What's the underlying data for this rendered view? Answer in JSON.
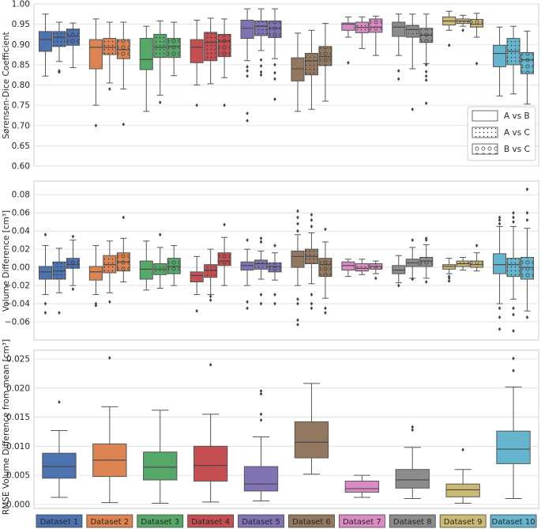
{
  "palette": [
    "#4c72b0",
    "#dd8452",
    "#55a868",
    "#c44e52",
    "#8172b3",
    "#937860",
    "#da8bc3",
    "#8c8c8c",
    "#ccb974",
    "#64b5cd"
  ],
  "chart_data": [
    {
      "type": "boxplot",
      "id": "dice",
      "ylabel": "Sørensen-Dice Coefficient",
      "ylim": [
        0.6,
        1.0
      ],
      "yticks": [
        "0.60",
        "0.65",
        "0.70",
        "0.75",
        "0.80",
        "0.85",
        "0.90",
        "0.95",
        "1.00"
      ],
      "legend": {
        "position": "right",
        "entries": [
          {
            "label": "A vs B",
            "hatch": "none"
          },
          {
            "label": "A vs C",
            "hatch": "dots"
          },
          {
            "label": "B vs C",
            "hatch": "circles"
          }
        ]
      },
      "series": [
        "A vs B",
        "A vs C",
        "B vs C"
      ],
      "categories": [
        "Dataset 1",
        "Dataset 2",
        "Dataset 3",
        "Dataset 4",
        "Dataset 5",
        "Dataset 6",
        "Dataset 7",
        "Dataset 8",
        "Dataset 9",
        "Dataset 10"
      ],
      "boxes": [
        [
          [
            0.822,
            0.883,
            0.912,
            0.932,
            0.975,
            []
          ],
          [
            0.858,
            0.895,
            0.918,
            0.932,
            0.955,
            [
              0.832,
              0.835
            ]
          ],
          [
            0.843,
            0.898,
            0.92,
            0.938,
            0.953,
            []
          ]
        ],
        [
          [
            0.75,
            0.84,
            0.893,
            0.912,
            0.963,
            [
              0.7
            ]
          ],
          [
            0.805,
            0.875,
            0.893,
            0.915,
            0.955,
            [
              0.79
            ]
          ],
          [
            0.79,
            0.865,
            0.887,
            0.912,
            0.955,
            [
              0.703
            ]
          ]
        ],
        [
          [
            0.735,
            0.838,
            0.863,
            0.915,
            0.945,
            []
          ],
          [
            0.775,
            0.868,
            0.893,
            0.925,
            0.958,
            [
              0.757
            ]
          ],
          [
            0.823,
            0.868,
            0.895,
            0.915,
            0.955,
            []
          ]
        ],
        [
          [
            0.8,
            0.855,
            0.893,
            0.912,
            0.96,
            [
              0.75
            ]
          ],
          [
            0.803,
            0.86,
            0.905,
            0.93,
            0.965,
            []
          ],
          [
            0.818,
            0.87,
            0.908,
            0.925,
            0.963,
            [
              0.75
            ]
          ]
        ],
        [
          [
            0.86,
            0.915,
            0.94,
            0.96,
            0.988,
            [
              0.845,
              0.835,
              0.822,
              0.73,
              0.712
            ]
          ],
          [
            0.885,
            0.922,
            0.945,
            0.958,
            0.988,
            [
              0.862,
              0.847,
              0.832,
              0.825
            ]
          ],
          [
            0.865,
            0.917,
            0.94,
            0.958,
            0.988,
            [
              0.85,
              0.83,
              0.815,
              0.765
            ]
          ]
        ],
        [
          [
            0.735,
            0.81,
            0.84,
            0.867,
            0.928,
            []
          ],
          [
            0.74,
            0.825,
            0.86,
            0.878,
            0.935,
            []
          ],
          [
            0.76,
            0.848,
            0.87,
            0.895,
            0.952,
            []
          ]
        ],
        [
          [
            0.918,
            0.935,
            0.95,
            0.953,
            0.968,
            [
              0.855
            ]
          ],
          [
            0.89,
            0.929,
            0.942,
            0.955,
            0.968,
            []
          ],
          [
            0.873,
            0.93,
            0.943,
            0.963,
            0.97,
            []
          ]
        ],
        [
          [
            0.873,
            0.92,
            0.943,
            0.955,
            0.975,
            [
              0.835,
              0.815
            ]
          ],
          [
            0.84,
            0.918,
            0.937,
            0.947,
            0.975,
            [
              0.74
            ]
          ],
          [
            0.853,
            0.905,
            0.923,
            0.94,
            0.975,
            [
              0.85,
              0.833,
              0.822,
              0.812,
              0.755
            ]
          ]
        ],
        [
          [
            0.935,
            0.948,
            0.958,
            0.968,
            0.982,
            [
              0.898
            ]
          ],
          [
            0.945,
            0.952,
            0.958,
            0.963,
            0.972,
            [
              0.935
            ]
          ],
          [
            0.918,
            0.943,
            0.95,
            0.962,
            0.977,
            [
              0.853
            ]
          ]
        ],
        [
          [
            0.773,
            0.845,
            0.878,
            0.898,
            0.943,
            []
          ],
          [
            0.778,
            0.85,
            0.883,
            0.915,
            0.945,
            []
          ],
          [
            0.753,
            0.828,
            0.862,
            0.88,
            0.933,
            []
          ]
        ]
      ]
    },
    {
      "type": "boxplot",
      "id": "voldiff",
      "ylabel": "Volume Difference [cm³]",
      "ylim": [
        -0.08,
        0.095
      ],
      "yticks": [
        "−0.06",
        "−0.04",
        "−0.02",
        "0.00",
        "0.02",
        "0.04",
        "0.06",
        "0.08"
      ],
      "series": [
        "A vs B",
        "A vs C",
        "B vs C"
      ],
      "categories": [
        "Dataset 1",
        "Dataset 2",
        "Dataset 3",
        "Dataset 4",
        "Dataset 5",
        "Dataset 6",
        "Dataset 7",
        "Dataset 8",
        "Dataset 9",
        "Dataset 10"
      ],
      "boxes": [
        [
          [
            -0.03,
            -0.013,
            -0.005,
            0.001,
            0.024,
            [
              0.036,
              -0.04,
              -0.05
            ]
          ],
          [
            -0.028,
            -0.013,
            -0.004,
            0.006,
            0.021,
            [
              -0.05
            ]
          ],
          [
            -0.02,
            -0.001,
            0.003,
            0.01,
            0.03,
            [
              0.034,
              -0.024
            ]
          ]
        ],
        [
          [
            -0.03,
            -0.014,
            -0.005,
            0.001,
            0.024,
            [
              -0.04,
              -0.042
            ]
          ],
          [
            -0.028,
            -0.006,
            0.003,
            0.013,
            0.029,
            [
              -0.038
            ]
          ],
          [
            -0.016,
            -0.004,
            0.006,
            0.016,
            0.032,
            [
              0.055
            ]
          ]
        ],
        [
          [
            -0.025,
            -0.013,
            -0.002,
            0.007,
            0.029,
            []
          ],
          [
            -0.023,
            -0.008,
            -0.002,
            0.004,
            0.022,
            [
              0.036
            ]
          ],
          [
            -0.02,
            -0.007,
            0.001,
            0.01,
            0.024,
            []
          ]
        ],
        [
          [
            -0.03,
            -0.016,
            -0.009,
            -0.005,
            0.012,
            [
              -0.048
            ]
          ],
          [
            -0.03,
            -0.011,
            -0.003,
            0.003,
            0.02,
            [
              -0.032,
              -0.036
            ]
          ],
          [
            -0.02,
            0.002,
            0.007,
            0.016,
            0.033,
            [
              0.047
            ]
          ]
        ],
        [
          [
            -0.02,
            -0.003,
            0.002,
            0.006,
            0.02,
            [
              0.03,
              -0.045,
              -0.038
            ]
          ],
          [
            -0.013,
            -0.002,
            0.004,
            0.008,
            0.018,
            [
              0.032,
              0.028,
              -0.03,
              -0.04
            ]
          ],
          [
            -0.014,
            -0.005,
            0.001,
            0.005,
            0.016,
            [
              0.024,
              -0.03,
              -0.04
            ]
          ]
        ],
        [
          [
            -0.02,
            0.0,
            0.012,
            0.018,
            0.036,
            [
              0.062,
              0.055,
              0.048,
              0.04,
              -0.035,
              -0.04,
              -0.058,
              -0.063
            ]
          ],
          [
            -0.018,
            0.004,
            0.012,
            0.02,
            0.038,
            [
              0.058,
              0.052,
              0.045,
              -0.03,
              -0.04,
              -0.045
            ]
          ],
          [
            -0.034,
            -0.01,
            0.003,
            0.01,
            0.028,
            [
              0.042,
              -0.045,
              -0.05
            ]
          ]
        ],
        [
          [
            -0.01,
            -0.003,
            0.002,
            0.006,
            0.009,
            []
          ],
          [
            -0.008,
            -0.004,
            -0.001,
            0.004,
            0.009,
            []
          ],
          [
            -0.007,
            -0.002,
            0.001,
            0.004,
            0.007,
            [
              -0.012
            ]
          ]
        ],
        [
          [
            -0.017,
            -0.007,
            -0.003,
            0.002,
            0.013,
            [
              -0.02
            ]
          ],
          [
            -0.012,
            0.001,
            0.005,
            0.009,
            0.022,
            [
              0.03,
              -0.013
            ]
          ],
          [
            -0.012,
            0.001,
            0.007,
            0.011,
            0.025,
            [
              0.032,
              0.03,
              -0.016
            ]
          ]
        ],
        [
          [
            -0.007,
            -0.002,
            0.001,
            0.003,
            0.01,
            [
              -0.01,
              -0.012,
              -0.015
            ]
          ],
          [
            -0.003,
            0.001,
            0.004,
            0.007,
            0.011,
            []
          ],
          [
            -0.004,
            0.0,
            0.003,
            0.007,
            0.016,
            [
              0.024
            ]
          ]
        ],
        [
          [
            -0.04,
            -0.007,
            0.003,
            0.015,
            0.045,
            [
              0.055,
              0.052,
              0.048,
              -0.045,
              -0.055,
              -0.068
            ]
          ],
          [
            -0.035,
            -0.01,
            0.003,
            0.01,
            0.045,
            [
              0.06,
              0.055,
              0.05,
              -0.045,
              -0.052,
              -0.07
            ]
          ],
          [
            -0.048,
            -0.013,
            0.0,
            0.011,
            0.043,
            [
              0.086,
              0.06,
              0.052,
              -0.055
            ]
          ]
        ]
      ]
    },
    {
      "type": "boxplot",
      "id": "rmse",
      "ylabel": "RMSE Volume Difference from mean [cm³]",
      "ylim": [
        -0.0007,
        0.0265
      ],
      "yticks": [
        "0.000",
        "0.005",
        "0.010",
        "0.015",
        "0.020",
        "0.025"
      ],
      "series": [
        "RMSE"
      ],
      "categories": [
        "Dataset 1",
        "Dataset 2",
        "Dataset 3",
        "Dataset 4",
        "Dataset 5",
        "Dataset 6",
        "Dataset 7",
        "Dataset 8",
        "Dataset 9",
        "Dataset 10"
      ],
      "boxes": [
        [
          [
            0.0012,
            0.0045,
            0.0065,
            0.0088,
            0.0127,
            [
              0.0176
            ]
          ]
        ],
        [
          [
            0.0003,
            0.0048,
            0.0076,
            0.0104,
            0.0168,
            [
              0.0252
            ]
          ]
        ],
        [
          [
            0.0002,
            0.0042,
            0.0064,
            0.009,
            0.0162,
            []
          ]
        ],
        [
          [
            0.0004,
            0.004,
            0.0067,
            0.01,
            0.0155,
            [
              0.024
            ]
          ]
        ],
        [
          [
            0.0006,
            0.0023,
            0.0035,
            0.0065,
            0.0116,
            [
              0.0145,
              0.0155,
              0.019,
              0.0195
            ]
          ]
        ],
        [
          [
            0.0052,
            0.008,
            0.0107,
            0.0142,
            0.0208,
            []
          ]
        ],
        [
          [
            0.0012,
            0.0021,
            0.0027,
            0.004,
            0.005,
            []
          ]
        ],
        [
          [
            0.001,
            0.0028,
            0.0042,
            0.006,
            0.0098,
            [
              0.0128,
              0.0133
            ]
          ]
        ],
        [
          [
            0.0002,
            0.0013,
            0.0025,
            0.0035,
            0.006,
            [
              0.0094
            ]
          ]
        ],
        [
          [
            0.001,
            0.007,
            0.0095,
            0.0126,
            0.0202,
            [
              0.023,
              0.0251
            ]
          ]
        ]
      ]
    }
  ]
}
